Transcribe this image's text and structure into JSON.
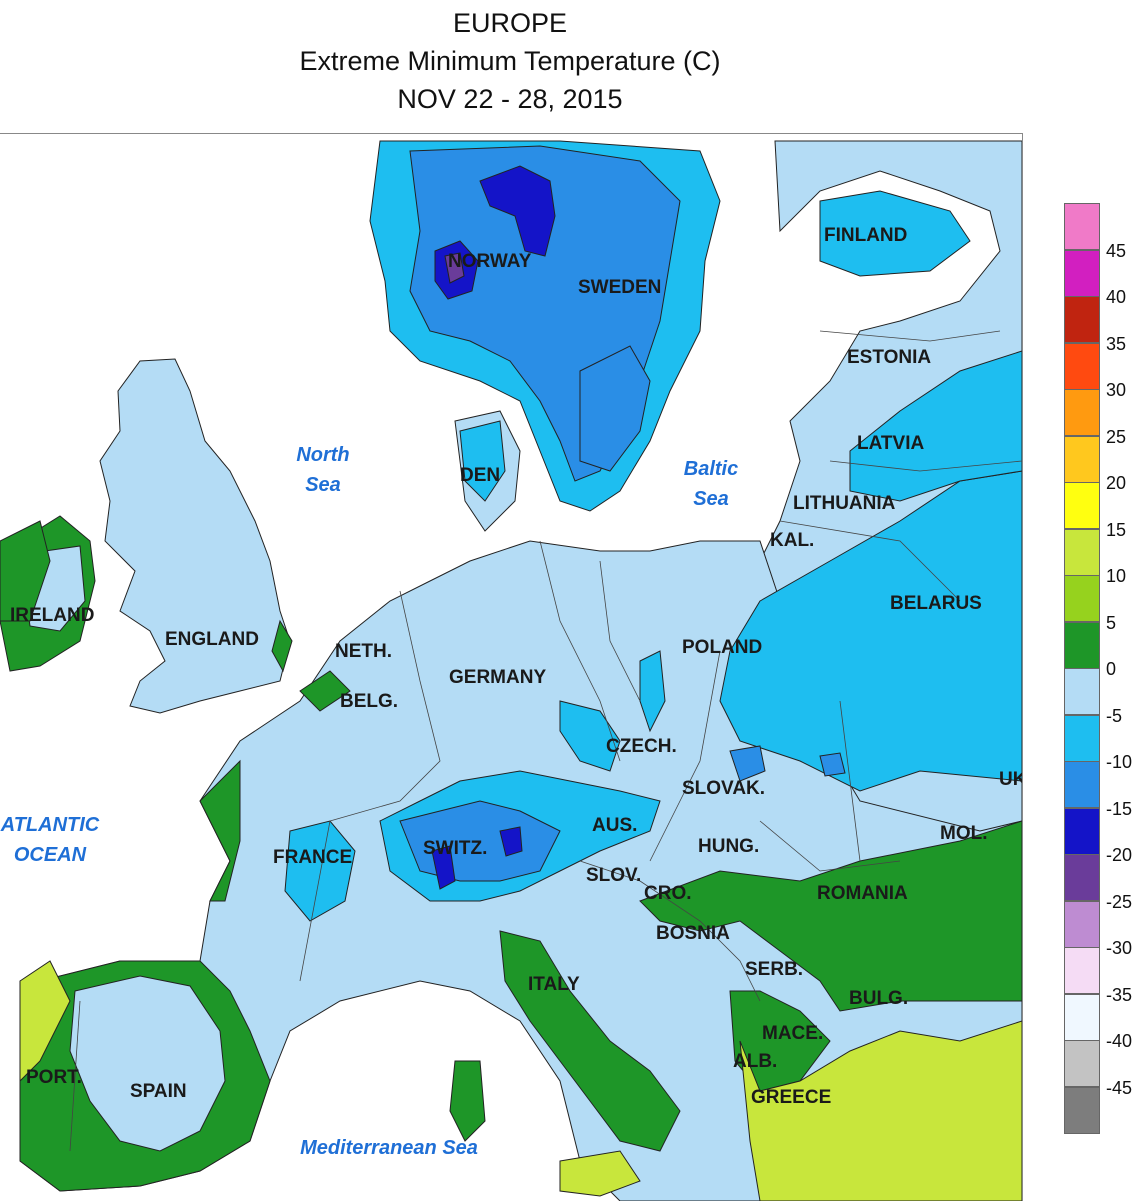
{
  "title": {
    "line1": "EUROPE",
    "line2": "Extreme Minimum Temperature (C)",
    "line3": "NOV 22 - 28, 2015"
  },
  "legend": [
    {
      "label": "45",
      "color": "#f07ac8"
    },
    {
      "label": "40",
      "color": "#d21fc0"
    },
    {
      "label": "35",
      "color": "#c02410"
    },
    {
      "label": "30",
      "color": "#ff4a10"
    },
    {
      "label": "25",
      "color": "#ff9a10"
    },
    {
      "label": "20",
      "color": "#ffc81e"
    },
    {
      "label": "15",
      "color": "#ffff10"
    },
    {
      "label": "10",
      "color": "#c8e63c"
    },
    {
      "label": "5",
      "color": "#96d21e"
    },
    {
      "label": "0",
      "color": "#1e9628"
    },
    {
      "label": "-5",
      "color": "#b4dcf5"
    },
    {
      "label": "-10",
      "color": "#1ebef0"
    },
    {
      "label": "-15",
      "color": "#2a8ee6"
    },
    {
      "label": "-20",
      "color": "#1414c8"
    },
    {
      "label": "-25",
      "color": "#6a3c9a"
    },
    {
      "label": "-30",
      "color": "#be8cd2"
    },
    {
      "label": "-35",
      "color": "#f5dcf5"
    },
    {
      "label": "-40",
      "color": "#f0f8ff"
    },
    {
      "label": "-45",
      "color": "#c3c3c3"
    },
    {
      "label": "",
      "color": "#7d7d7d"
    }
  ],
  "countries": {
    "norway": "NORWAY",
    "sweden": "SWEDEN",
    "finland": "FINLAND",
    "estonia": "ESTONIA",
    "latvia": "LATVIA",
    "lithuania": "LITHUANIA",
    "kal": "KAL.",
    "den": "DEN",
    "ireland": "IRELAND",
    "england": "ENGLAND",
    "neth": "NETH.",
    "belg": "BELG.",
    "germany": "GERMANY",
    "poland": "POLAND",
    "belarus": "BELARUS",
    "czech": "CZECH.",
    "slovak": "SLOVAK.",
    "uk": "UK",
    "aus": "AUS.",
    "hung": "HUNG.",
    "mol": "MOL.",
    "france": "FRANCE",
    "switz": "SWITZ.",
    "slov": "SLOV.",
    "cro": "CRO.",
    "romania": "ROMANIA",
    "bosnia": "BOSNIA",
    "serb": "SERB.",
    "bulg": "BULG.",
    "italy": "ITALY",
    "mace": "MACE.",
    "alb": "ALB.",
    "greece": "GREECE",
    "port": "PORT.",
    "spain": "SPAIN"
  },
  "seas": {
    "north_line1": "North",
    "north_line2": "Sea",
    "baltic_line1": "Baltic",
    "baltic_line2": "Sea",
    "atlantic_line1": "ATLANTIC",
    "atlantic_line2": "OCEAN",
    "mediterranean": "Mediterranean Sea"
  }
}
